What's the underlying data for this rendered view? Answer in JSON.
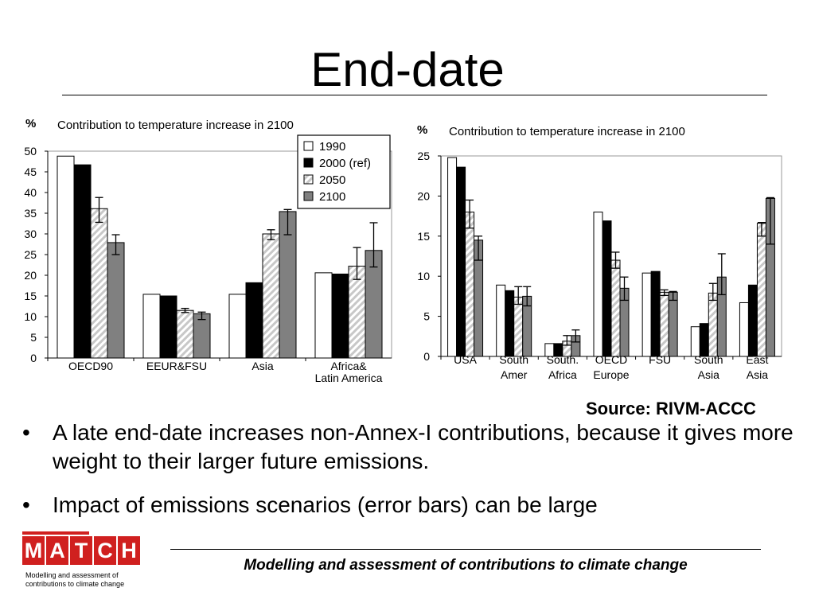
{
  "slide": {
    "title": "End-date",
    "source": "Source: RIVM-ACCC",
    "bullets": [
      "A late end-date increases non-Annex-I contributions, because it gives more weight to their larger future emissions.",
      "Impact of emissions scenarios (error bars) can be large"
    ],
    "bullet_marker": "•",
    "footer": "Modelling and assessment of contributions to climate change",
    "logo": {
      "letters": [
        "M",
        "A",
        "T",
        "C",
        "H"
      ],
      "subtitle": "Modelling and assessment of contributions to climate change"
    }
  },
  "colors": {
    "black": "#000000",
    "grey": "#808080",
    "white": "#ffffff",
    "hatch": "#c8c8c8",
    "logo_red": "#d0201f"
  },
  "chart_data": [
    {
      "type": "bar",
      "title": "Contribution to temperature increase in 2100",
      "ylabel": "%",
      "ylim": [
        0,
        50
      ],
      "yticks": [
        0,
        5,
        10,
        15,
        20,
        25,
        30,
        35,
        40,
        45,
        50
      ],
      "grid": false,
      "legend_position": "top-right",
      "categories": [
        "OECD90",
        "EEUR&FSU",
        "Asia",
        "Africa& Latin America"
      ],
      "series": [
        {
          "name": "1990",
          "fill": "white",
          "values": [
            48.8,
            15.4,
            15.4,
            20.6
          ]
        },
        {
          "name": "2000 (ref)",
          "fill": "black",
          "values": [
            46.7,
            15.0,
            18.2,
            20.3
          ]
        },
        {
          "name": "2050",
          "fill": "hatch",
          "values": [
            36.1,
            11.5,
            30.0,
            22.2
          ],
          "error": [
            [
              32.8,
              38.8
            ],
            [
              11.0,
              12.0
            ],
            [
              28.6,
              31.0
            ],
            [
              19.0,
              26.7
            ]
          ]
        },
        {
          "name": "2100",
          "fill": "grey",
          "values": [
            27.9,
            10.7,
            35.4,
            26.0
          ],
          "error": [
            [
              25.0,
              29.8
            ],
            [
              9.3,
              11.1
            ],
            [
              29.8,
              35.9
            ],
            [
              22.0,
              32.7
            ]
          ]
        }
      ]
    },
    {
      "type": "bar",
      "title": "Contribution to temperature increase in 2100",
      "ylabel": "%",
      "ylim": [
        0,
        25
      ],
      "yticks": [
        0,
        5,
        10,
        15,
        20,
        25
      ],
      "grid": false,
      "categories": [
        "USA",
        "South Amer",
        "South. Africa",
        "OECD Europe",
        "FSU",
        "South Asia",
        "East Asia"
      ],
      "series": [
        {
          "name": "1990",
          "fill": "white",
          "values": [
            24.8,
            8.9,
            1.6,
            18.0,
            10.4,
            3.7,
            6.7
          ]
        },
        {
          "name": "2000 (ref)",
          "fill": "black",
          "values": [
            23.6,
            8.2,
            1.6,
            16.9,
            10.6,
            4.1,
            8.9
          ]
        },
        {
          "name": "2050",
          "fill": "hatch",
          "values": [
            18.0,
            7.4,
            1.9,
            12.0,
            8.0,
            7.9,
            16.6
          ],
          "error": [
            [
              16.0,
              19.5
            ],
            [
              6.5,
              8.7
            ],
            [
              1.4,
              2.6
            ],
            [
              11.0,
              13.0
            ],
            [
              7.6,
              8.3
            ],
            [
              7.0,
              9.1
            ],
            [
              15.0,
              16.7
            ]
          ]
        },
        {
          "name": "2100",
          "fill": "grey",
          "values": [
            14.5,
            7.5,
            2.6,
            8.5,
            8.0,
            9.9,
            19.7
          ],
          "error": [
            [
              12.0,
              15.0
            ],
            [
              6.3,
              8.7
            ],
            [
              1.8,
              3.3
            ],
            [
              7.0,
              9.9
            ],
            [
              7.0,
              8.1
            ],
            [
              7.7,
              12.8
            ],
            [
              14.0,
              19.8
            ]
          ]
        }
      ]
    }
  ]
}
